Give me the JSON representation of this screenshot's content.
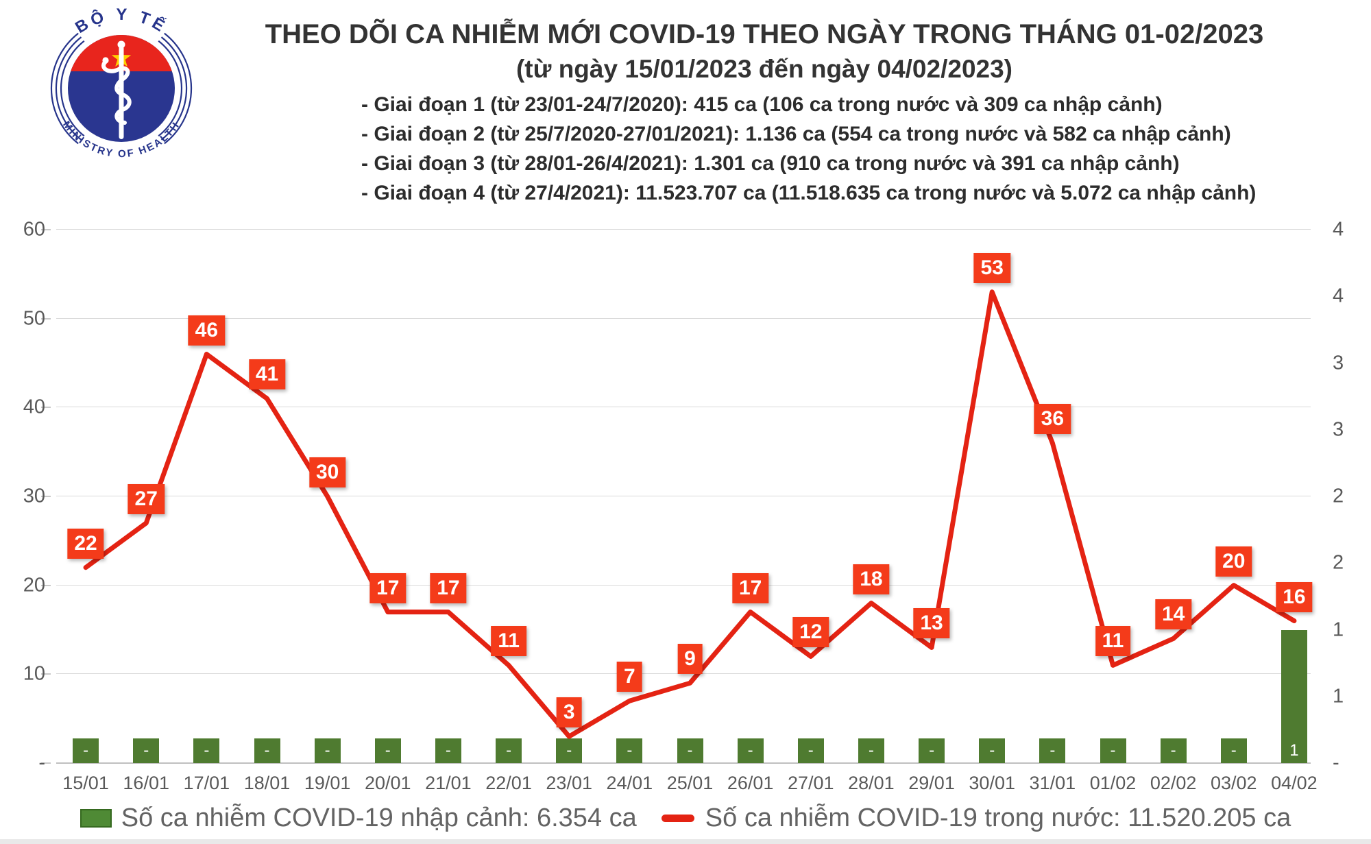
{
  "logo": {
    "top_text": "BỘ Y TẾ",
    "bottom_text": "MINISTRY OF HEALTH",
    "navy": "#26348b",
    "red": "#e8251d",
    "star_yellow": "#ffd100"
  },
  "header": {
    "title": "THEO DÕI CA NHIỄM MỚI COVID-19 THEO NGÀY TRONG THÁNG 01-02/2023",
    "subtitle": "(từ ngày 15/01/2023 đến ngày 04/02/2023)",
    "phases": [
      "- Giai đoạn 1 (từ 23/01-24/7/2020): 415 ca (106 ca trong nước và 309 ca nhập cảnh)",
      "- Giai đoạn 2 (từ 25/7/2020-27/01/2021): 1.136 ca (554 ca trong nước và 582 ca nhập cảnh)",
      "- Giai đoạn 3 (từ 28/01-26/4/2021): 1.301 ca (910 ca trong nước và 391 ca nhập cảnh)",
      "- Giai đoạn 4 (từ 27/4/2021): 11.523.707 ca (11.518.635 ca trong nước và 5.072 ca nhập cảnh)"
    ]
  },
  "chart_data": {
    "type": "line+bar",
    "title": "THEO DÕI CA NHIỄM MỚI COVID-19 THEO NGÀY TRONG THÁNG 01-02/2023",
    "categories": [
      "15/01",
      "16/01",
      "17/01",
      "18/01",
      "19/01",
      "20/01",
      "21/01",
      "22/01",
      "23/01",
      "24/01",
      "25/01",
      "26/01",
      "27/01",
      "28/01",
      "29/01",
      "30/01",
      "31/01",
      "01/02",
      "02/02",
      "03/02",
      "04/02"
    ],
    "series": [
      {
        "name": "Số ca nhiễm COVID-19 trong nước",
        "type": "line",
        "axis": "left",
        "color": "#e42313",
        "values": [
          22,
          27,
          46,
          41,
          30,
          17,
          17,
          11,
          3,
          7,
          9,
          17,
          12,
          18,
          13,
          53,
          36,
          11,
          14,
          20,
          16
        ]
      },
      {
        "name": "Số ca nhiễm COVID-19 nhập cảnh",
        "type": "bar",
        "axis": "right",
        "color": "#4f7b30",
        "zero_label": "-",
        "values": [
          0,
          0,
          0,
          0,
          0,
          0,
          0,
          0,
          0,
          0,
          0,
          0,
          0,
          0,
          0,
          0,
          0,
          0,
          0,
          0,
          1
        ]
      }
    ],
    "left_axis": {
      "min": 0,
      "max": 60,
      "step": 10,
      "tick_labels": [
        "60",
        "50",
        "40",
        "30",
        "20",
        "10",
        "-"
      ]
    },
    "right_axis": {
      "min": 0,
      "max": 4,
      "step": 0.5,
      "tick_labels": [
        "4",
        "4",
        "3",
        "3",
        "2",
        "2",
        "1",
        "1",
        "-"
      ]
    },
    "label_box_color": "#f43b1a",
    "gridline_color": "#d9d9d9",
    "grid": true,
    "legend_position": "bottom"
  },
  "legend": [
    {
      "swatch": "bar",
      "color": "#4f8a35",
      "label": "Số ca nhiễm COVID-19 nhập cảnh: 6.354 ca"
    },
    {
      "swatch": "line",
      "color": "#e42313",
      "label": "Số ca nhiễm COVID-19 trong nước: 11.520.205 ca"
    }
  ]
}
